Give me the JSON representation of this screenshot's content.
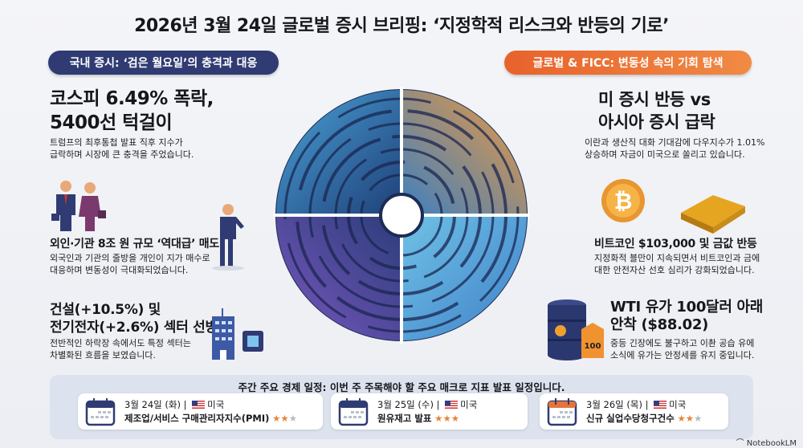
{
  "title": "2026년 3월 24일 글로벌 증시 브리핑: ‘지정학적 리스크와 반등의 기로’",
  "left_badge": "국내 증시: ‘검은 월요일’의 충격과 대응",
  "right_badge": "글로벌 & FICC: 변동성 속의 기회 탐색",
  "left": [
    {
      "heading_l1": "코스피 6.49% 폭락,",
      "heading_l2": "5400선 턱걸이",
      "body_l1": "트럼프의 최후통첩 발표 직후 지수가",
      "body_l2": "급락하며 시장에 큰 충격을 주었습니다."
    },
    {
      "heading": "외인·기관 8조 원 규모 ‘역대급’ 매도",
      "body_l1": "외국인과 기관의 줄방을 개인이 지가 매수로",
      "body_l2": "대응하며 변동성이 극대화되었습니다."
    },
    {
      "heading_l1": "건설(+10.5%) 및",
      "heading_l2": "전기전자(+2.6%) 섹터 선방",
      "body_l1": "전반적인 하락장 속에서도 특정 섹터는",
      "body_l2": "차별화된 흐름을 보였습니다."
    }
  ],
  "right": [
    {
      "heading_l1": "미 증시 반등 vs",
      "heading_l2": "아시아 증시 급락",
      "body_l1": "이란과 생산직 대화 기대감에 다우지수가 1.01%",
      "body_l2": "상승하며 자금이 미국으로 쏠리고 있습니다."
    },
    {
      "heading": "비트코인 $103,000 및 금값 반등",
      "body_l1": "지정화적 블만이 지속되면서 비트코인과 금에",
      "body_l2": "대한 안전자산 선호 심리가 강화되었습니다."
    },
    {
      "heading_l1": "WTI 유가 100달러 아래",
      "heading_l2": "안착 ($88.02)",
      "body_l1": "중등 긴장에도 불구하고 이촨 공습 유에",
      "body_l2": "소식에 유가는 안정세를 유지 중입니다.",
      "tag": "100"
    }
  ],
  "schedule": {
    "title": "주간 주요 경제 일정: 이번 주 주목해야 할 주요 매크로 지표 발표 일정입니다.",
    "events": [
      {
        "date": "3월 24일 (화)",
        "country": "미국",
        "name": "제조업/서비스 구매관리자지수(PMI)",
        "rating": 2,
        "calendar_color": "#2f3b72"
      },
      {
        "date": "3월 25일 (수)",
        "country": "미국",
        "name": "원유재고 발표",
        "rating": 3,
        "calendar_color": "#2f3b72"
      },
      {
        "date": "3월 26일 (목)",
        "country": "미국",
        "name": "신규 실업수당청구건수",
        "rating": 2,
        "calendar_color": "#e8733a"
      }
    ]
  },
  "watermark": "NotebookLM"
}
